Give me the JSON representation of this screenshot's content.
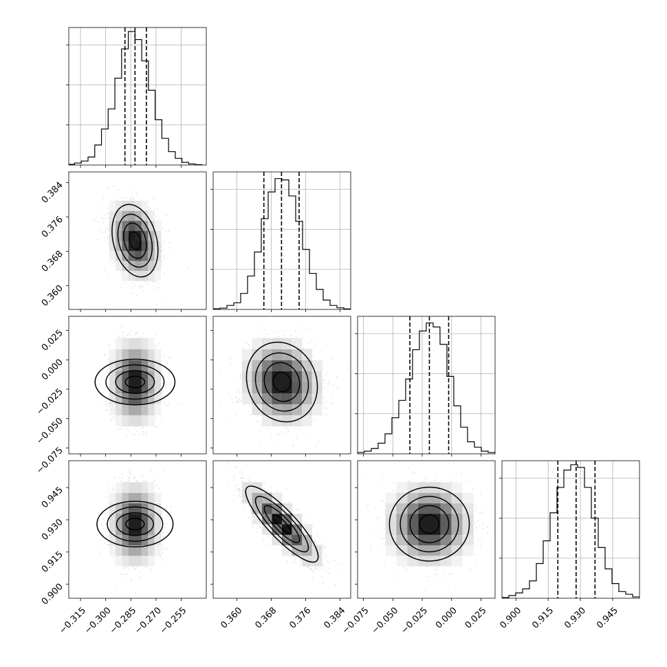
{
  "chart_data": {
    "type": "corner",
    "title": "",
    "parameters": [
      {
        "range": [
          -0.322,
          -0.24
        ],
        "ticks": [
          -0.315,
          -0.3,
          -0.285,
          -0.27,
          -0.255
        ],
        "tick_labels": [
          "−0.315",
          "−0.300",
          "−0.285",
          "−0.270",
          "−0.255"
        ],
        "quantiles": [
          -0.2885,
          -0.2825,
          -0.2757
        ],
        "hist_x": [
          -0.3205,
          -0.3165,
          -0.3125,
          -0.3085,
          -0.3045,
          -0.3005,
          -0.2965,
          -0.2925,
          -0.2885,
          -0.2845,
          -0.2805,
          -0.2765,
          -0.2725,
          -0.2685,
          -0.2645,
          -0.2605,
          -0.2565,
          -0.2525,
          -0.2485,
          -0.2445
        ],
        "hist_y": [
          0.005,
          0.015,
          0.03,
          0.06,
          0.15,
          0.27,
          0.42,
          0.65,
          0.87,
          1.0,
          0.94,
          0.78,
          0.56,
          0.34,
          0.2,
          0.1,
          0.05,
          0.02,
          0.008,
          0.003
        ]
      },
      {
        "range": [
          0.3545,
          0.3865
        ],
        "ticks": [
          0.36,
          0.368,
          0.376,
          0.384
        ],
        "tick_labels": [
          "0.360",
          "0.368",
          "0.376",
          "0.384"
        ],
        "quantiles": [
          0.3663,
          0.3704,
          0.3745
        ],
        "hist_x": [
          0.3553,
          0.3569,
          0.3585,
          0.3601,
          0.3617,
          0.3633,
          0.3649,
          0.3665,
          0.3681,
          0.3697,
          0.3713,
          0.3729,
          0.3745,
          0.3761,
          0.3777,
          0.3793,
          0.3809,
          0.3825,
          0.3841,
          0.3857
        ],
        "hist_y": [
          0.005,
          0.01,
          0.03,
          0.05,
          0.12,
          0.25,
          0.43,
          0.68,
          0.88,
          0.98,
          0.97,
          0.85,
          0.66,
          0.45,
          0.27,
          0.15,
          0.07,
          0.03,
          0.012,
          0.004
        ]
      },
      {
        "range": [
          -0.08,
          0.037
        ],
        "ticks": [
          -0.075,
          -0.05,
          -0.025,
          0.0,
          0.025
        ],
        "tick_labels": [
          "−0.075",
          "−0.050",
          "−0.025",
          "0.000",
          "0.025"
        ],
        "quantiles": [
          -0.0355,
          -0.0189,
          -0.0025
        ],
        "hist_x": [
          -0.0771,
          -0.0713,
          -0.0654,
          -0.0596,
          -0.0537,
          -0.0479,
          -0.042,
          -0.0362,
          -0.0303,
          -0.0245,
          -0.0186,
          -0.0128,
          -0.0069,
          -0.0011,
          0.0048,
          0.0106,
          0.0165,
          0.0223,
          0.0282,
          0.034
        ],
        "hist_y": [
          0.01,
          0.02,
          0.04,
          0.08,
          0.15,
          0.27,
          0.4,
          0.56,
          0.78,
          0.92,
          0.98,
          0.95,
          0.82,
          0.58,
          0.36,
          0.2,
          0.09,
          0.05,
          0.02,
          0.01
        ]
      },
      {
        "range": [
          0.8935,
          0.9575
        ],
        "ticks": [
          0.9,
          0.915,
          0.93,
          0.945
        ],
        "tick_labels": [
          "0.900",
          "0.915",
          "0.930",
          "0.945"
        ],
        "quantiles": [
          0.9195,
          0.928,
          0.9368
        ],
        "hist_x": [
          0.8951,
          0.8983,
          0.9015,
          0.9047,
          0.9079,
          0.9111,
          0.9143,
          0.9175,
          0.9207,
          0.9239,
          0.9271,
          0.9303,
          0.9335,
          0.9367,
          0.9399,
          0.9431,
          0.9463,
          0.9495,
          0.9527,
          0.9559
        ],
        "hist_y": [
          0.005,
          0.02,
          0.04,
          0.07,
          0.13,
          0.26,
          0.43,
          0.64,
          0.83,
          0.96,
          1.0,
          0.98,
          0.83,
          0.6,
          0.38,
          0.22,
          0.11,
          0.05,
          0.03,
          0.01
        ]
      }
    ],
    "pairs": [
      {
        "row": 1,
        "col": 0,
        "mean": [
          -0.2825,
          0.3705
        ],
        "sd": [
          0.0068,
          0.0041
        ],
        "rho": -0.25
      },
      {
        "row": 2,
        "col": 0,
        "mean": [
          -0.2825,
          -0.0189
        ],
        "sd": [
          0.0068,
          0.0165
        ],
        "rho": 0.0
      },
      {
        "row": 2,
        "col": 1,
        "mean": [
          0.3705,
          -0.0189
        ],
        "sd": [
          0.0041,
          0.0165
        ],
        "rho": -0.1
      },
      {
        "row": 3,
        "col": 0,
        "mean": [
          -0.2825,
          0.928
        ],
        "sd": [
          0.0068,
          0.0086
        ],
        "rho": 0.0
      },
      {
        "row": 3,
        "col": 1,
        "mean": [
          0.3705,
          0.928
        ],
        "sd": [
          0.0041,
          0.0086
        ],
        "rho": -0.85
      },
      {
        "row": 3,
        "col": 2,
        "mean": [
          -0.0189,
          0.928
        ],
        "sd": [
          0.0165,
          0.0086
        ],
        "rho": 0.0
      }
    ],
    "grid": true,
    "legend": "none"
  }
}
